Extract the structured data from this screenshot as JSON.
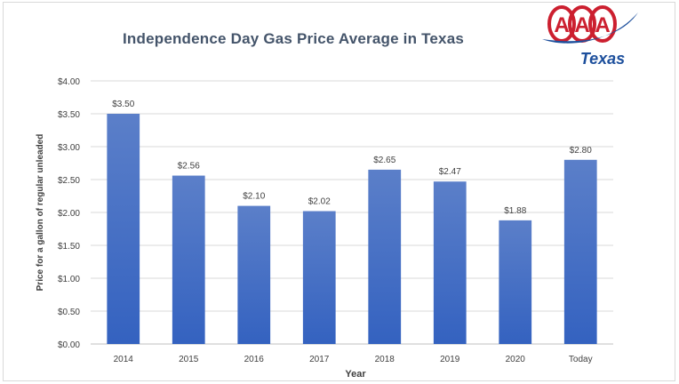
{
  "title": "Independence Day Gas Price Average in Texas",
  "logo": {
    "brand": "AAA",
    "region": "Texas"
  },
  "chart_data": {
    "type": "bar",
    "title": "Independence Day Gas Price Average in Texas",
    "xlabel": "Year",
    "ylabel": "Price for a gallon of regular unleaded",
    "categories": [
      "2014",
      "2015",
      "2016",
      "2017",
      "2018",
      "2019",
      "2020",
      "Today"
    ],
    "values": [
      3.5,
      2.56,
      2.1,
      2.02,
      2.65,
      2.47,
      1.88,
      2.8
    ],
    "data_labels": [
      "$3.50",
      "$2.56",
      "$2.10",
      "$2.02",
      "$2.65",
      "$2.47",
      "$1.88",
      "$2.80"
    ],
    "yticks": [
      0,
      0.5,
      1,
      1.5,
      2,
      2.5,
      3,
      3.5,
      4
    ],
    "ytick_labels": [
      "$0.00",
      "$0.50",
      "$1.00",
      "$1.50",
      "$2.00",
      "$2.50",
      "$3.00",
      "$3.50",
      "$4.00"
    ],
    "ylim": [
      0,
      4
    ],
    "grid": true,
    "legend": "none",
    "bar_color_top": "#5b7fc9",
    "bar_color_bottom": "#3462c0"
  }
}
